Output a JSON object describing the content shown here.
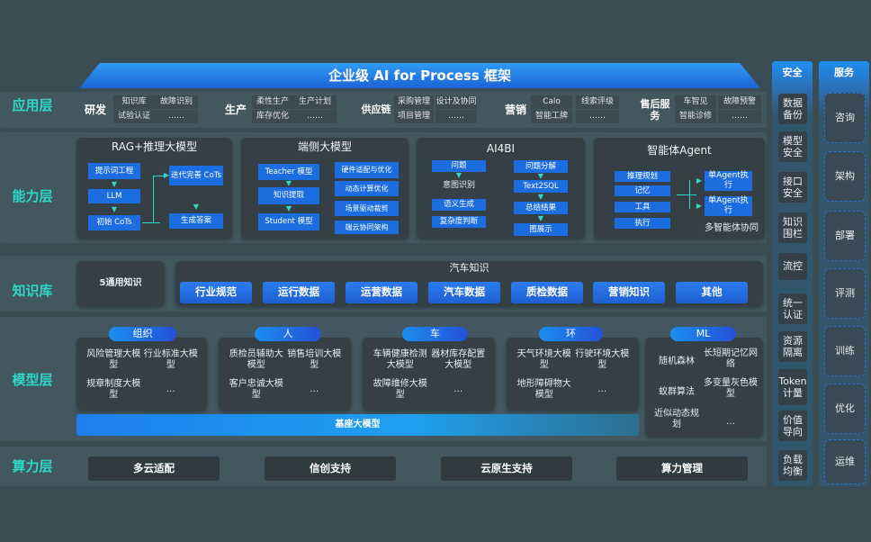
{
  "title": "企业级 AI for Process 框架",
  "layers": {
    "app": "应用层",
    "capability": "能力层",
    "knowledge": "知识库",
    "model": "模型层",
    "compute": "算力层"
  },
  "app": {
    "groups": [
      {
        "name": "研发",
        "items": [
          "知识库",
          "故障识别",
          "试验认证",
          "……"
        ]
      },
      {
        "name": "生产",
        "items": [
          "柔性生产",
          "生产计划",
          "库存优化",
          "……"
        ]
      },
      {
        "name": "供应链",
        "items": [
          "采购管理",
          "设计及协同",
          "项目管理",
          "……"
        ]
      },
      {
        "name": "营销",
        "items": [
          "Calo",
          "线索评级",
          "智能工牌",
          "……"
        ]
      },
      {
        "name": "售后服务",
        "items": [
          "车智见",
          "故障预警",
          "智能诊修",
          "……"
        ]
      }
    ]
  },
  "capability": {
    "rag": {
      "title": "RAG+推理大模型",
      "items": [
        "提示词工程",
        "LLM",
        "初始 CoTs",
        "迭代完善 CoTs",
        "生成答案"
      ]
    },
    "edge": {
      "title": "端侧大模型",
      "items": [
        "Teacher 模型",
        "知识提取",
        "Student 模型",
        "硬件适配与优化",
        "动态计算优化",
        "场景驱动裁剪",
        "端云协同架构"
      ]
    },
    "ai4bi": {
      "title": "AI4BI",
      "items": [
        "问题",
        "意图识别",
        "语义生成",
        "复杂度判断",
        "问题分解",
        "Text2SQL",
        "总结结果",
        "图展示"
      ]
    },
    "agent": {
      "title": "智能体Agent",
      "items": [
        "推理规划",
        "记忆",
        "工具",
        "执行",
        "单Agent执行",
        "单Agent执行"
      ],
      "footer": "多智能体协同"
    }
  },
  "knowledge": {
    "general": "5通用知识",
    "auto_title": "汽车知识",
    "auto_items": [
      "行业规范",
      "运行数据",
      "运营数据",
      "汽车数据",
      "质检数据",
      "营销知识",
      "其他"
    ]
  },
  "model": {
    "groups": [
      {
        "name": "组织",
        "items": [
          "风险管理大模型",
          "行业标准大模型",
          "规章制度大模型",
          "…"
        ]
      },
      {
        "name": "人",
        "items": [
          "质检员辅助大模型",
          "销售培训大模型",
          "客户忠诚大模型",
          "…"
        ]
      },
      {
        "name": "车",
        "items": [
          "车辆健康检测大模型",
          "器材库存配置大模型",
          "故障维修大模型",
          "…"
        ]
      },
      {
        "name": "环",
        "items": [
          "天气环境大模型",
          "行驶环境大模型",
          "地形障碍物大模型",
          "…"
        ]
      },
      {
        "name": "ML",
        "items": [
          "随机森林",
          "长短期记忆网络",
          "蚁群算法",
          "多变量灰色模型",
          "近似动态规划",
          "…"
        ]
      }
    ],
    "base": "基座大模型"
  },
  "compute": {
    "items": [
      "多云适配",
      "信创支持",
      "云原生支持",
      "算力管理"
    ]
  },
  "security": {
    "title": "安全",
    "items": [
      "数据备份",
      "模型安全",
      "接口安全",
      "知识围栏",
      "流控",
      "统一认证",
      "资源隔离",
      "Token计量",
      "价值导向",
      "负载均衡"
    ]
  },
  "service": {
    "title": "服务",
    "items": [
      "咨询",
      "架构",
      "部署",
      "评测",
      "训练",
      "优化",
      "运维"
    ]
  },
  "colors": {
    "background": "#3a4c54",
    "accent_blue": "#1c6ee0",
    "layer_label": "#2fd8c6"
  }
}
